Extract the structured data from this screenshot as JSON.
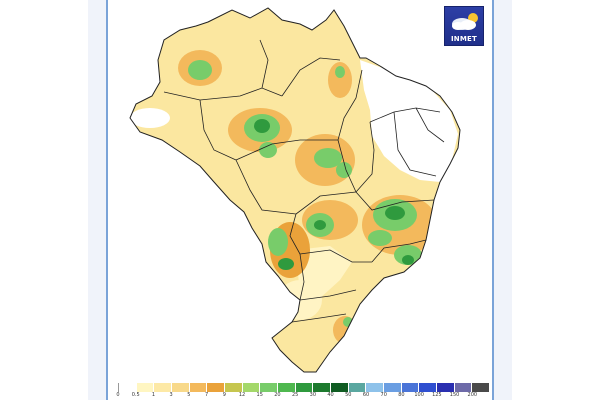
{
  "logo": {
    "text": "INMET",
    "icon": "cloud-sun-icon"
  },
  "legend": {
    "labels": [
      "0",
      "0.5",
      "1",
      "3",
      "5",
      "7",
      "9",
      "12",
      "15",
      "20",
      "25",
      "30",
      "40",
      "50",
      "60",
      "70",
      "80",
      "100",
      "125",
      "150",
      "200"
    ],
    "colors": [
      "#ffffff",
      "#fff6c2",
      "#fde9a6",
      "#f8d98a",
      "#f3b95c",
      "#eaa23a",
      "#c6c64f",
      "#a4d86a",
      "#78cc6a",
      "#4fb84f",
      "#2f9a3e",
      "#1d7a2e",
      "#0f5c22",
      "#5aa7a0",
      "#8ec2ea",
      "#6a9ee2",
      "#4a74d8",
      "#2f4fd0",
      "#2a2fb0",
      "#6d6aa8",
      "#4a4a4a"
    ]
  },
  "colors": {
    "frame_border": "#7aa3d8",
    "side_band": "#f0f3fa",
    "boundary": "#222222",
    "light_yellow": "#fde9a6",
    "orange": "#f3b95c",
    "green": "#78cc6a",
    "dark_green": "#2f9a3e"
  }
}
